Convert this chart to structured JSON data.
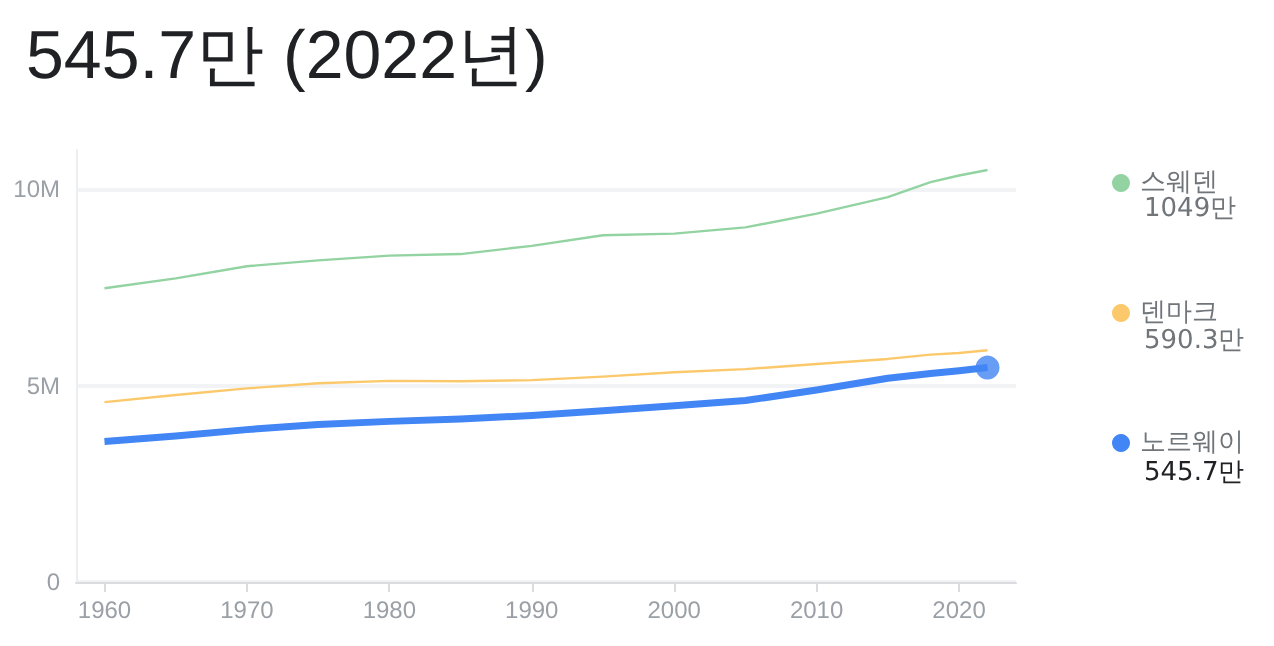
{
  "chart_data": {
    "type": "line",
    "title": "545.7만 (2022년)",
    "x": [
      1960,
      1965,
      1970,
      1975,
      1980,
      1985,
      1990,
      1995,
      2000,
      2005,
      2010,
      2015,
      2018,
      2020,
      2022
    ],
    "series": [
      {
        "name": "스웨덴",
        "color": "#93d3a2",
        "values": [
          7.48,
          7.73,
          8.04,
          8.19,
          8.31,
          8.35,
          8.56,
          8.83,
          8.87,
          9.03,
          9.38,
          9.8,
          10.18,
          10.35,
          10.49
        ]
      },
      {
        "name": "덴마크",
        "color": "#fbc96b",
        "values": [
          4.58,
          4.76,
          4.93,
          5.06,
          5.12,
          5.11,
          5.14,
          5.23,
          5.34,
          5.42,
          5.55,
          5.68,
          5.79,
          5.83,
          5.9
        ]
      },
      {
        "name": "노르웨이",
        "color": "#4285f4",
        "values": [
          3.58,
          3.72,
          3.88,
          4.01,
          4.09,
          4.15,
          4.24,
          4.36,
          4.49,
          4.62,
          4.89,
          5.19,
          5.31,
          5.38,
          5.46
        ]
      },
      {
        "type": "scatter",
        "color": "#4285f4",
        "x": [
          2022
        ],
        "values": [
          5.46
        ],
        "marker": "circle"
      }
    ],
    "annotations": [
      "1049만",
      "590.3만",
      "545.7만"
    ],
    "xlim": [
      1958,
      2024
    ],
    "xticks": [
      1960,
      1970,
      1980,
      1990,
      2000,
      2010,
      2020
    ],
    "ylim": [
      0,
      11
    ],
    "yticks": [
      0,
      {
        "value": 5,
        "label": "5M"
      },
      {
        "value": 10,
        "label": "10M"
      }
    ],
    "grid": "y",
    "legend": "right"
  }
}
